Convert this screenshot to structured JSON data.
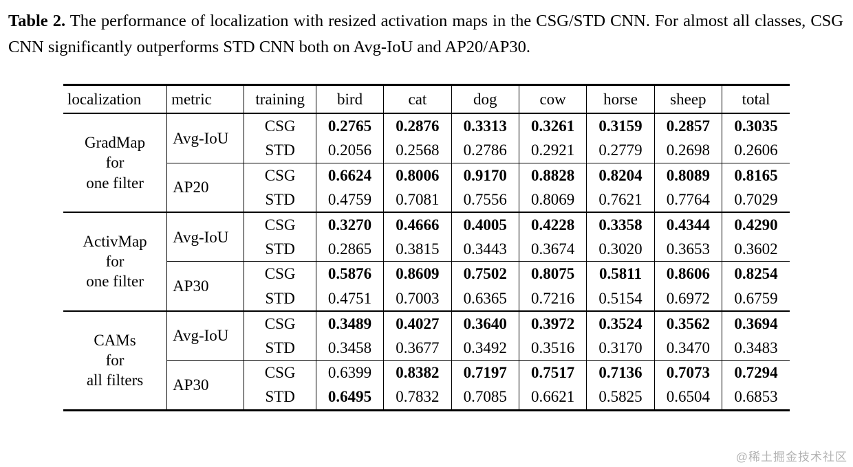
{
  "caption": {
    "label": "Table 2.",
    "text": "The performance of localization with resized activation maps in the CSG/STD CNN. For almost all classes, CSG CNN significantly outperforms STD CNN both on Avg-IoU and AP20/AP30."
  },
  "watermark": "@稀土掘金技术社区",
  "table": {
    "headers": [
      "localization",
      "metric",
      "training",
      "bird",
      "cat",
      "dog",
      "cow",
      "horse",
      "sheep",
      "total"
    ],
    "groups": [
      {
        "localization": "GradMap\nfor\none filter",
        "metrics": [
          {
            "name": "Avg-IoU",
            "rows": [
              {
                "training": "CSG",
                "values": [
                  "0.2765",
                  "0.2876",
                  "0.3313",
                  "0.3261",
                  "0.3159",
                  "0.2857",
                  "0.3035"
                ],
                "bold": [
                  1,
                  1,
                  1,
                  1,
                  1,
                  1,
                  1
                ]
              },
              {
                "training": "STD",
                "values": [
                  "0.2056",
                  "0.2568",
                  "0.2786",
                  "0.2921",
                  "0.2779",
                  "0.2698",
                  "0.2606"
                ],
                "bold": [
                  0,
                  0,
                  0,
                  0,
                  0,
                  0,
                  0
                ]
              }
            ]
          },
          {
            "name": "AP20",
            "rows": [
              {
                "training": "CSG",
                "values": [
                  "0.6624",
                  "0.8006",
                  "0.9170",
                  "0.8828",
                  "0.8204",
                  "0.8089",
                  "0.8165"
                ],
                "bold": [
                  1,
                  1,
                  1,
                  1,
                  1,
                  1,
                  1
                ]
              },
              {
                "training": "STD",
                "values": [
                  "0.4759",
                  "0.7081",
                  "0.7556",
                  "0.8069",
                  "0.7621",
                  "0.7764",
                  "0.7029"
                ],
                "bold": [
                  0,
                  0,
                  0,
                  0,
                  0,
                  0,
                  0
                ]
              }
            ]
          }
        ]
      },
      {
        "localization": "ActivMap\nfor\none filter",
        "metrics": [
          {
            "name": "Avg-IoU",
            "rows": [
              {
                "training": "CSG",
                "values": [
                  "0.3270",
                  "0.4666",
                  "0.4005",
                  "0.4228",
                  "0.3358",
                  "0.4344",
                  "0.4290"
                ],
                "bold": [
                  1,
                  1,
                  1,
                  1,
                  1,
                  1,
                  1
                ]
              },
              {
                "training": "STD",
                "values": [
                  "0.2865",
                  "0.3815",
                  "0.3443",
                  "0.3674",
                  "0.3020",
                  "0.3653",
                  "0.3602"
                ],
                "bold": [
                  0,
                  0,
                  0,
                  0,
                  0,
                  0,
                  0
                ]
              }
            ]
          },
          {
            "name": "AP30",
            "rows": [
              {
                "training": "CSG",
                "values": [
                  "0.5876",
                  "0.8609",
                  "0.7502",
                  "0.8075",
                  "0.5811",
                  "0.8606",
                  "0.8254"
                ],
                "bold": [
                  1,
                  1,
                  1,
                  1,
                  1,
                  1,
                  1
                ]
              },
              {
                "training": "STD",
                "values": [
                  "0.4751",
                  "0.7003",
                  "0.6365",
                  "0.7216",
                  "0.5154",
                  "0.6972",
                  "0.6759"
                ],
                "bold": [
                  0,
                  0,
                  0,
                  0,
                  0,
                  0,
                  0
                ]
              }
            ]
          }
        ]
      },
      {
        "localization": "CAMs\nfor\nall filters",
        "metrics": [
          {
            "name": "Avg-IoU",
            "rows": [
              {
                "training": "CSG",
                "values": [
                  "0.3489",
                  "0.4027",
                  "0.3640",
                  "0.3972",
                  "0.3524",
                  "0.3562",
                  "0.3694"
                ],
                "bold": [
                  1,
                  1,
                  1,
                  1,
                  1,
                  1,
                  1
                ]
              },
              {
                "training": "STD",
                "values": [
                  "0.3458",
                  "0.3677",
                  "0.3492",
                  "0.3516",
                  "0.3170",
                  "0.3470",
                  "0.3483"
                ],
                "bold": [
                  0,
                  0,
                  0,
                  0,
                  0,
                  0,
                  0
                ]
              }
            ]
          },
          {
            "name": "AP30",
            "rows": [
              {
                "training": "CSG",
                "values": [
                  "0.6399",
                  "0.8382",
                  "0.7197",
                  "0.7517",
                  "0.7136",
                  "0.7073",
                  "0.7294"
                ],
                "bold": [
                  0,
                  1,
                  1,
                  1,
                  1,
                  1,
                  1
                ]
              },
              {
                "training": "STD",
                "values": [
                  "0.6495",
                  "0.7832",
                  "0.7085",
                  "0.6621",
                  "0.5825",
                  "0.6504",
                  "0.6853"
                ],
                "bold": [
                  1,
                  0,
                  0,
                  0,
                  0,
                  0,
                  0
                ]
              }
            ]
          }
        ]
      }
    ]
  }
}
